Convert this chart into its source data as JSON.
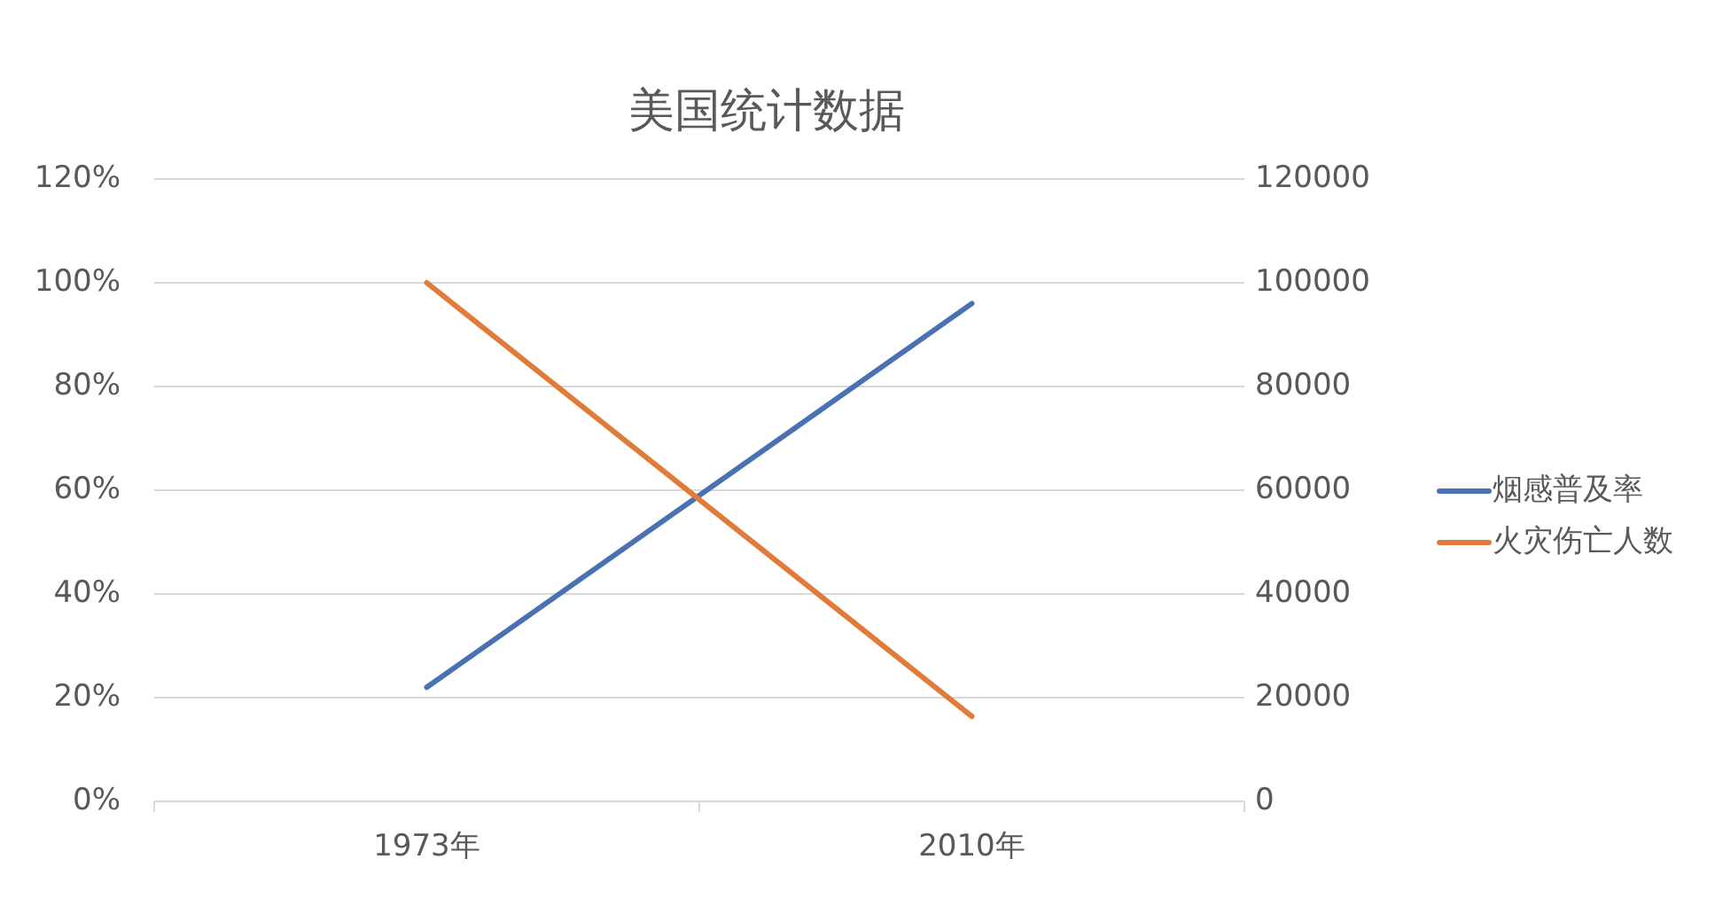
{
  "chart_data": {
    "type": "line",
    "title": "美国统计数据",
    "categories": [
      "1973年",
      "2010年"
    ],
    "series": [
      {
        "name": "烟感普及率",
        "color": "#4a72b2",
        "values": [
          22,
          96
        ]
      },
      {
        "name": "火灾伤亡人数",
        "color": "#e07b39",
        "values": [
          100000,
          16400
        ],
        "axis": "y2"
      }
    ],
    "ylim": [
      0,
      120
    ],
    "yticks": [
      {
        "value": 0,
        "label": "0%"
      },
      {
        "value": 20,
        "label": "20%"
      },
      {
        "value": 40,
        "label": "40%"
      },
      {
        "value": 60,
        "label": "60%"
      },
      {
        "value": 80,
        "label": "80%"
      },
      {
        "value": 100,
        "label": "100%"
      },
      {
        "value": 120,
        "label": "120%"
      }
    ],
    "y2lim": [
      0,
      120000
    ],
    "y2ticks": [
      0,
      20000,
      40000,
      60000,
      80000,
      100000,
      120000
    ],
    "grid": "y",
    "legend": "right",
    "marker": "none",
    "line_style": "solid"
  }
}
